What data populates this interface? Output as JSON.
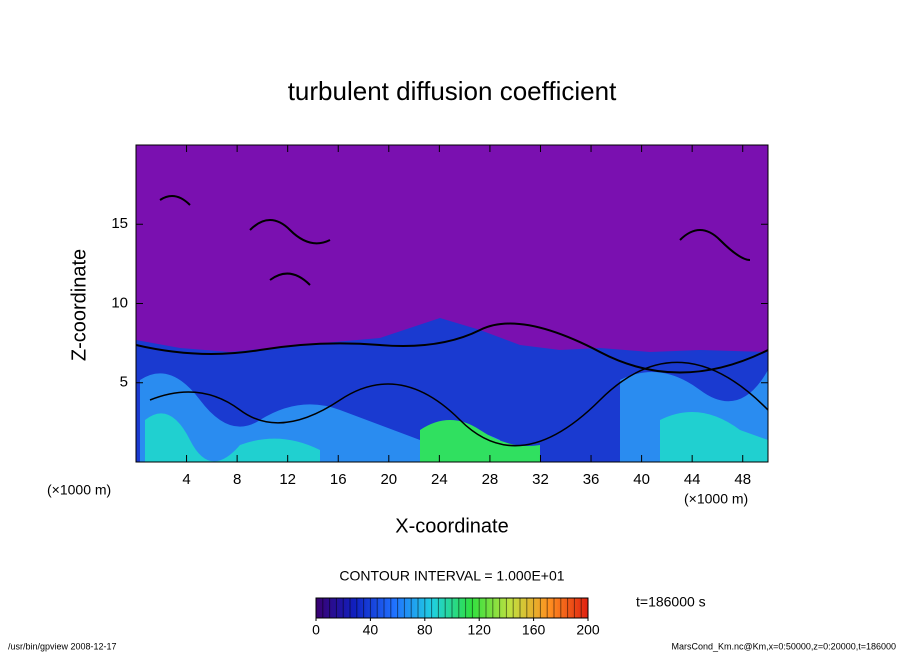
{
  "chart_data": {
    "type": "contour",
    "title": "turbulent diffusion coefficient",
    "xlabel": "X-coordinate",
    "ylabel": "Z-coordinate",
    "x_unit_labels": [
      "(×1000 m)",
      "(×1000 m)"
    ],
    "xlim": [
      0,
      50
    ],
    "ylim": [
      0,
      20
    ],
    "xticks": [
      4,
      8,
      12,
      16,
      20,
      24,
      28,
      32,
      36,
      40,
      44,
      48
    ],
    "yticks": [
      5,
      10,
      15
    ],
    "contour_interval": "CONTOUR INTERVAL = 1.000E+01",
    "time_label": "t=186000 s",
    "colorbar_lim": [
      0,
      200
    ],
    "colorbar_ticks": [
      0,
      40,
      80,
      120,
      160,
      200
    ],
    "colormap": [
      "#3a0070",
      "#1020c0",
      "#2070ff",
      "#20d0e0",
      "#30e040",
      "#c0e040",
      "#ff9020",
      "#e02010"
    ],
    "footer_left": "/usr/bin/gpview  2008-12-17",
    "footer_right": "MarsCond_Km.nc@Km,x=0:50000,z=0:20000,t=186000"
  }
}
